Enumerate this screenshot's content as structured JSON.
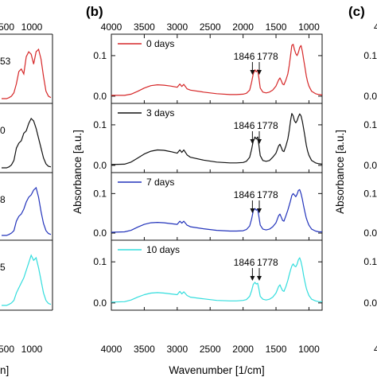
{
  "panel_labels": {
    "b": "(b)",
    "c": "(c)"
  },
  "left_partial": {
    "top_ticks": [
      "500",
      "1000"
    ],
    "bottom_ticks": [
      "500",
      "1000"
    ],
    "xlabel_fragment": "n]",
    "peak_fragments": [
      "53",
      "0",
      "8",
      "5"
    ],
    "colors": [
      "#d62728",
      "#111111",
      "#2233bb",
      "#33dddd"
    ]
  },
  "right_partial": {
    "ylabel": "Absorbance [a.u.]",
    "y_ticks": [
      "0.1",
      "0.0"
    ],
    "top_tick_fragment": "4"
  },
  "chart_data": {
    "type": "line",
    "xlabel": "Wavenumber [1/cm]",
    "ylabel": "Absorbance [a.u.]",
    "xlim": [
      4000,
      800
    ],
    "x_ticks": [
      4000,
      3500,
      3000,
      2500,
      2000,
      1500,
      1000
    ],
    "x_tick_labels": [
      "4000",
      "3500",
      "3000",
      "2500",
      "2000",
      "1500",
      "1000"
    ],
    "ylim": [
      -0.01,
      0.145
    ],
    "y_ticks": [
      0.0,
      0.1
    ],
    "y_tick_labels": [
      "0.0",
      "0.1"
    ],
    "grid": false,
    "annotation_labels": [
      "1846",
      "1778"
    ],
    "annotation_x": [
      1846,
      1778
    ],
    "series": [
      {
        "name": "0 days",
        "color": "#d62728",
        "x": [
          4000,
          3800,
          3700,
          3600,
          3500,
          3400,
          3300,
          3200,
          3100,
          3000,
          2960,
          2930,
          2900,
          2850,
          2800,
          2600,
          2400,
          2200,
          2100,
          2000,
          1950,
          1900,
          1870,
          1846,
          1820,
          1800,
          1778,
          1760,
          1740,
          1700,
          1650,
          1600,
          1550,
          1500,
          1460,
          1440,
          1420,
          1400,
          1380,
          1350,
          1320,
          1300,
          1280,
          1260,
          1240,
          1220,
          1200,
          1180,
          1160,
          1140,
          1120,
          1100,
          1080,
          1060,
          1040,
          1020,
          1000,
          960,
          900,
          850,
          800
        ],
        "y": [
          0.002,
          0.002,
          0.005,
          0.012,
          0.02,
          0.026,
          0.028,
          0.027,
          0.025,
          0.022,
          0.03,
          0.024,
          0.029,
          0.018,
          0.015,
          0.01,
          0.006,
          0.004,
          0.004,
          0.005,
          0.007,
          0.015,
          0.035,
          0.055,
          0.065,
          0.06,
          0.065,
          0.045,
          0.02,
          0.01,
          0.008,
          0.01,
          0.015,
          0.025,
          0.04,
          0.045,
          0.038,
          0.03,
          0.028,
          0.04,
          0.055,
          0.075,
          0.1,
          0.125,
          0.128,
          0.115,
          0.105,
          0.1,
          0.108,
          0.12,
          0.125,
          0.11,
          0.09,
          0.07,
          0.05,
          0.035,
          0.025,
          0.012,
          0.006,
          0.004,
          0.003
        ]
      },
      {
        "name": "3 days",
        "color": "#111111",
        "x": [
          4000,
          3800,
          3700,
          3600,
          3500,
          3400,
          3300,
          3200,
          3100,
          3000,
          2960,
          2930,
          2900,
          2850,
          2800,
          2600,
          2400,
          2200,
          2100,
          2000,
          1950,
          1900,
          1870,
          1846,
          1820,
          1800,
          1778,
          1760,
          1740,
          1700,
          1650,
          1600,
          1550,
          1500,
          1460,
          1440,
          1420,
          1400,
          1380,
          1350,
          1320,
          1300,
          1280,
          1260,
          1240,
          1220,
          1200,
          1180,
          1160,
          1140,
          1120,
          1100,
          1080,
          1060,
          1040,
          1020,
          1000,
          960,
          900,
          850,
          800
        ],
        "y": [
          0.002,
          0.003,
          0.008,
          0.018,
          0.028,
          0.035,
          0.038,
          0.037,
          0.034,
          0.03,
          0.038,
          0.032,
          0.038,
          0.026,
          0.02,
          0.013,
          0.008,
          0.006,
          0.006,
          0.007,
          0.01,
          0.02,
          0.04,
          0.06,
          0.07,
          0.065,
          0.07,
          0.05,
          0.024,
          0.012,
          0.01,
          0.012,
          0.02,
          0.03,
          0.048,
          0.052,
          0.044,
          0.036,
          0.034,
          0.048,
          0.065,
          0.085,
          0.11,
          0.128,
          0.122,
          0.11,
          0.105,
          0.11,
          0.12,
          0.127,
          0.122,
          0.108,
          0.09,
          0.07,
          0.05,
          0.035,
          0.025,
          0.012,
          0.006,
          0.004,
          0.003
        ]
      },
      {
        "name": "7 days",
        "color": "#2233bb",
        "x": [
          4000,
          3800,
          3700,
          3600,
          3500,
          3400,
          3300,
          3200,
          3100,
          3000,
          2960,
          2930,
          2900,
          2850,
          2800,
          2600,
          2400,
          2200,
          2100,
          2000,
          1950,
          1900,
          1870,
          1846,
          1820,
          1800,
          1778,
          1760,
          1740,
          1700,
          1650,
          1600,
          1550,
          1500,
          1460,
          1440,
          1420,
          1400,
          1380,
          1350,
          1320,
          1300,
          1280,
          1260,
          1240,
          1220,
          1200,
          1180,
          1160,
          1140,
          1120,
          1100,
          1080,
          1060,
          1040,
          1020,
          1000,
          960,
          900,
          850,
          800
        ],
        "y": [
          0.002,
          0.003,
          0.007,
          0.015,
          0.022,
          0.026,
          0.027,
          0.026,
          0.024,
          0.022,
          0.03,
          0.025,
          0.03,
          0.02,
          0.016,
          0.011,
          0.007,
          0.005,
          0.005,
          0.006,
          0.009,
          0.018,
          0.036,
          0.056,
          0.062,
          0.058,
          0.06,
          0.042,
          0.02,
          0.01,
          0.008,
          0.01,
          0.016,
          0.026,
          0.044,
          0.048,
          0.04,
          0.032,
          0.03,
          0.044,
          0.058,
          0.07,
          0.082,
          0.095,
          0.1,
          0.096,
          0.092,
          0.098,
          0.108,
          0.11,
          0.1,
          0.085,
          0.068,
          0.052,
          0.038,
          0.028,
          0.02,
          0.01,
          0.005,
          0.003,
          0.003
        ]
      },
      {
        "name": "10 days",
        "color": "#33dddd",
        "x": [
          4000,
          3800,
          3700,
          3600,
          3500,
          3400,
          3300,
          3200,
          3100,
          3000,
          2960,
          2930,
          2900,
          2850,
          2800,
          2600,
          2400,
          2200,
          2100,
          2000,
          1950,
          1900,
          1870,
          1846,
          1820,
          1800,
          1778,
          1760,
          1740,
          1700,
          1650,
          1600,
          1550,
          1500,
          1460,
          1440,
          1420,
          1400,
          1380,
          1350,
          1320,
          1300,
          1280,
          1260,
          1240,
          1220,
          1200,
          1180,
          1160,
          1140,
          1120,
          1100,
          1080,
          1060,
          1040,
          1020,
          1000,
          960,
          900,
          850,
          800
        ],
        "y": [
          0.002,
          0.003,
          0.007,
          0.014,
          0.02,
          0.024,
          0.025,
          0.024,
          0.022,
          0.02,
          0.028,
          0.022,
          0.027,
          0.018,
          0.014,
          0.01,
          0.006,
          0.005,
          0.005,
          0.006,
          0.008,
          0.016,
          0.03,
          0.045,
          0.05,
          0.046,
          0.048,
          0.034,
          0.016,
          0.009,
          0.007,
          0.009,
          0.014,
          0.024,
          0.04,
          0.044,
          0.036,
          0.03,
          0.028,
          0.04,
          0.055,
          0.068,
          0.08,
          0.09,
          0.095,
          0.09,
          0.088,
          0.094,
          0.105,
          0.11,
          0.1,
          0.085,
          0.066,
          0.05,
          0.036,
          0.026,
          0.018,
          0.009,
          0.005,
          0.003,
          0.003
        ]
      }
    ]
  }
}
